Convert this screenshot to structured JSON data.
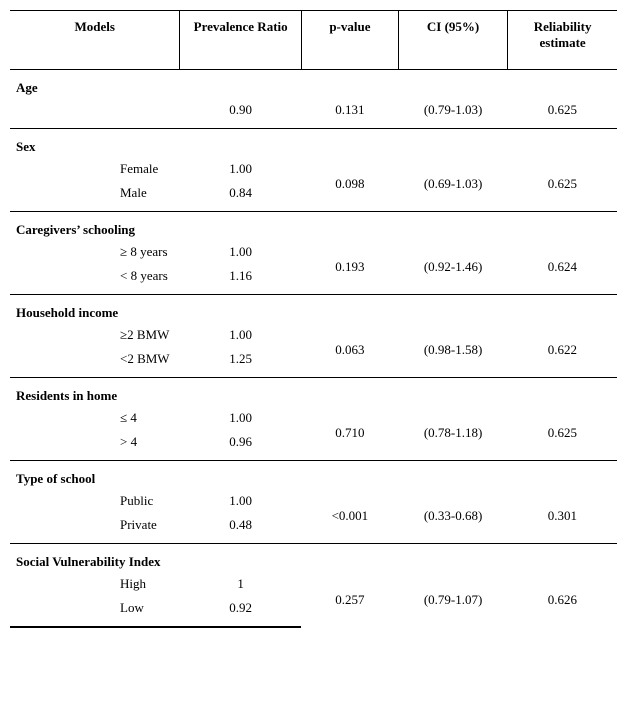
{
  "columns": [
    "Models",
    "Prevalence Ratio",
    "p-value",
    "CI (95%)",
    "Reliability estimate"
  ],
  "sections": [
    {
      "name": "Age",
      "rows": [
        {
          "label": "",
          "pr": "0.90",
          "p": "0.131",
          "ci": "(0.79-1.03)",
          "rel": "0.625"
        }
      ]
    },
    {
      "name": "Sex",
      "rows": [
        {
          "label": "Female",
          "pr": "1.00"
        },
        {
          "label": "Male",
          "pr": "0.84"
        }
      ],
      "shared": {
        "p": "0.098",
        "ci": "(0.69-1.03)",
        "rel": "0.625"
      }
    },
    {
      "name": "Caregivers’ schooling",
      "rows": [
        {
          "label": "≥ 8 years",
          "pr": "1.00"
        },
        {
          "label": "< 8 years",
          "pr": "1.16"
        }
      ],
      "shared": {
        "p": "0.193",
        "ci": "(0.92-1.46)",
        "rel": "0.624"
      }
    },
    {
      "name": "Household income",
      "rows": [
        {
          "label": "≥2 BMW",
          "pr": "1.00"
        },
        {
          "label": "<2 BMW",
          "pr": "1.25"
        }
      ],
      "shared": {
        "p": "0.063",
        "ci": "(0.98-1.58)",
        "rel": "0.622"
      }
    },
    {
      "name": "Residents in home",
      "rows": [
        {
          "label": "≤ 4",
          "pr": "1.00"
        },
        {
          "label": "> 4",
          "pr": "0.96"
        }
      ],
      "shared": {
        "p": "0.710",
        "ci": "(0.78-1.18)",
        "rel": "0.625"
      }
    },
    {
      "name": "Type of school",
      "rows": [
        {
          "label": "Public",
          "pr": "1.00"
        },
        {
          "label": "Private",
          "pr": "0.48"
        }
      ],
      "shared": {
        "p": "<0.001",
        "ci": "(0.33-0.68)",
        "rel": "0.301"
      }
    },
    {
      "name": "Social Vulnerability Index",
      "rows": [
        {
          "label": "High",
          "pr": "1"
        },
        {
          "label": "Low",
          "pr": "0.92"
        }
      ],
      "shared": {
        "p": "0.257",
        "ci": "(0.79-1.07)",
        "rel": "0.626"
      }
    }
  ]
}
